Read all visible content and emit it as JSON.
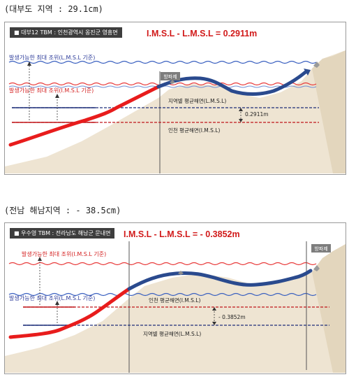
{
  "section1": {
    "heading": "(대부도 지역 : 29.1cm)",
    "panel": {
      "badge": "■ 대부12 TBM : 인천광역시 옹진군 영흥면",
      "formula": "I.M.S.L - L.M.S.L = 0.2911m",
      "label_upper": "발생가능한 최대 조위(L.M.S.L 기준)",
      "label_lower": "발생가능한 최대 조위(I.M.S.L 기준)",
      "breakwater": "방파제",
      "line_upper": "지역별 평균해면(L.M.S.L)",
      "line_lower": "인천 평균해면(I.M.S.L)",
      "diff": "0.2911m"
    }
  },
  "section2": {
    "heading": "(전남 해남지역 : - 38.5cm)",
    "panel": {
      "badge": "■ 우수영 TBM : 전라남도 해남군 문내면",
      "formula": "I.M.S.L - L.M.S.L = - 0.3852m",
      "label_upper": "발생가능한 최대 조위(I.M.S.L 기준)",
      "label_lower": "발생가능한 최대 조위(L.M.S.L 기준)",
      "breakwater": "방파제",
      "line_upper": "인천 평균해면(I.M.S.L)",
      "line_lower": "지역별 평균해면(L.M.S.L)",
      "diff": "- 0.3852m"
    }
  },
  "colors": {
    "ground_line": "#e81c1c",
    "breakwater_line": "#2a4a8e",
    "wave_red": "#e83a3a",
    "wave_blue": "#3a60c0",
    "dashed_red": "#c0161b",
    "dashed_blue": "#1f2f7a",
    "land": "#eee4d2"
  }
}
